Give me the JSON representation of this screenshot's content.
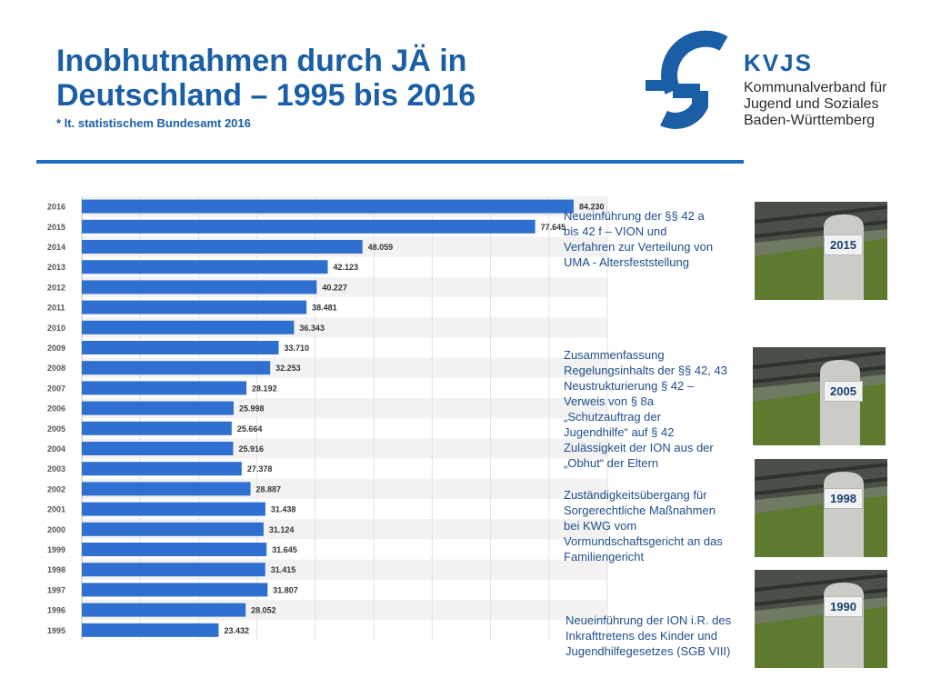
{
  "header": {
    "title_line1": "Inobhutnahmen durch JÄ in",
    "title_line2": "Deutschland – 1995 bis 2016",
    "subtitle": "* lt. statistischem Bundesamt 2016"
  },
  "logo": {
    "abbr": "KVJS",
    "line1": "Kommunalverband für",
    "line2": "Jugend und Soziales",
    "line3": "Baden-Württemberg",
    "color": "#1a5ea6"
  },
  "chart_data": {
    "type": "bar",
    "orientation": "horizontal",
    "categories": [
      "2016",
      "2015",
      "2014",
      "2013",
      "2012",
      "2011",
      "2010",
      "2009",
      "2008",
      "2007",
      "2006",
      "2005",
      "2004",
      "2003",
      "2002",
      "2001",
      "2000",
      "1999",
      "1998",
      "1997",
      "1996",
      "1995"
    ],
    "values": [
      84230,
      77645,
      48059,
      42123,
      40227,
      38481,
      36343,
      33710,
      32253,
      28192,
      25998,
      25664,
      25916,
      27378,
      28887,
      31438,
      31124,
      31645,
      31415,
      31807,
      28052,
      23432
    ],
    "value_labels": [
      "84.230",
      "77.645",
      "48.059",
      "42.123",
      "40.227",
      "38.481",
      "36.343",
      "33.710",
      "32.253",
      "28.192",
      "25.998",
      "25.664",
      "25.916",
      "27.378",
      "28.887",
      "31.438",
      "31.124",
      "31.645",
      "31.415",
      "31.807",
      "28.052",
      "23.432"
    ],
    "xlim": [
      0,
      90000
    ],
    "bar_color": "#2f6fd0",
    "grid": true
  },
  "notes": [
    {
      "text": "Neueinführung der §§ 42 a bis 42 f – VION und Verfahren zur Verteilung von UMA - Altersfeststellung"
    },
    {
      "text": "Zusammenfassung Regelungsinhalts der §§ 42, 43 Neustrukturierung  § 42 – Verweis von § 8a „Schutzauftrag der Jugendhilfe“ auf § 42 Zulässigkeit der ION aus der „Obhut“ der Eltern"
    },
    {
      "text": "Zuständigkeitsübergang für Sorgerechtliche Maßnahmen bei KWG vom Vormundschaftsgericht an das Familiengericht"
    },
    {
      "text": "Neueinführung der ION i.R. des Inkrafttretens des Kinder und Jugendhilfegesetzes (SGB VIII)"
    }
  ],
  "milestones": [
    {
      "label": "2015"
    },
    {
      "label": "2005"
    },
    {
      "label": "1998"
    },
    {
      "label": "1990"
    }
  ]
}
